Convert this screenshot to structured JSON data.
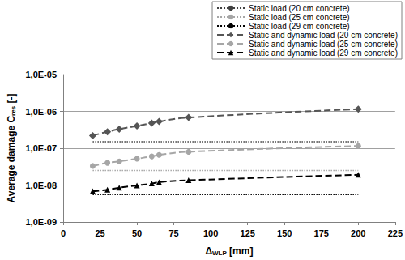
{
  "chart_data": {
    "type": "line",
    "xlabel": {
      "text": "Δ",
      "subscript": "WLP",
      "suffix": " [mm]"
    },
    "ylabel": {
      "text": "Average damage C",
      "subscript": "res",
      "suffix": " [-]"
    },
    "log": "y",
    "grid": true,
    "legend": "top right",
    "xlim": [
      0,
      225
    ],
    "xticks": [
      0,
      25,
      50,
      75,
      100,
      125,
      150,
      175,
      200,
      225
    ],
    "ylim": [
      1e-09,
      1e-05
    ],
    "yticks": [
      {
        "value": 1e-09,
        "label": "1,0E-09"
      },
      {
        "value": 1e-08,
        "label": "1,0E-08"
      },
      {
        "value": 1e-07,
        "label": "1,0E-07"
      },
      {
        "value": 1e-06,
        "label": "1,0E-06"
      },
      {
        "value": 1e-05,
        "label": "1,0E-05"
      }
    ],
    "series": [
      {
        "name": "Static load (20 cm concrete)",
        "color": "#404040",
        "marker": "none",
        "line_style": "dotted",
        "x": [
          20,
          200
        ],
        "values": [
          1.5e-07,
          1.5e-07
        ]
      },
      {
        "name": "Static load (25 cm concrete)",
        "color": "#a6a6a6",
        "marker": "none",
        "line_style": "dotted",
        "x": [
          20,
          200
        ],
        "values": [
          2.5e-08,
          2.5e-08
        ]
      },
      {
        "name": "Static load (29 cm concrete)",
        "color": "#000000",
        "marker": "none",
        "line_style": "dotted",
        "x": [
          20,
          200
        ],
        "values": [
          5.5e-09,
          5.5e-09
        ]
      },
      {
        "name": "Static and dynamic load (20 cm concrete)",
        "color": "#555555",
        "marker": "diamond",
        "line_style": "dashed",
        "x": [
          20,
          30,
          38,
          50,
          60,
          65,
          85,
          200
        ],
        "values": [
          2.2e-07,
          2.8e-07,
          3.3e-07,
          4e-07,
          4.8e-07,
          5.3e-07,
          6.8e-07,
          1.15e-06
        ]
      },
      {
        "name": "Static and dynamic load (25 cm concrete)",
        "color": "#a6a6a6",
        "marker": "circle",
        "line_style": "dashed",
        "x": [
          20,
          30,
          38,
          50,
          60,
          65,
          85,
          200
        ],
        "values": [
          3.3e-08,
          4e-08,
          4.4e-08,
          5.2e-08,
          6e-08,
          6.6e-08,
          8e-08,
          1.15e-07
        ]
      },
      {
        "name": "Static and dynamic load (29 cm concrete)",
        "color": "#000000",
        "marker": "triangle",
        "line_style": "dashed",
        "x": [
          20,
          30,
          38,
          50,
          60,
          65,
          85,
          200
        ],
        "values": [
          6.8e-09,
          7.5e-09,
          8.5e-09,
          9.8e-09,
          1.1e-08,
          1.2e-08,
          1.35e-08,
          1.9e-08
        ]
      }
    ]
  }
}
